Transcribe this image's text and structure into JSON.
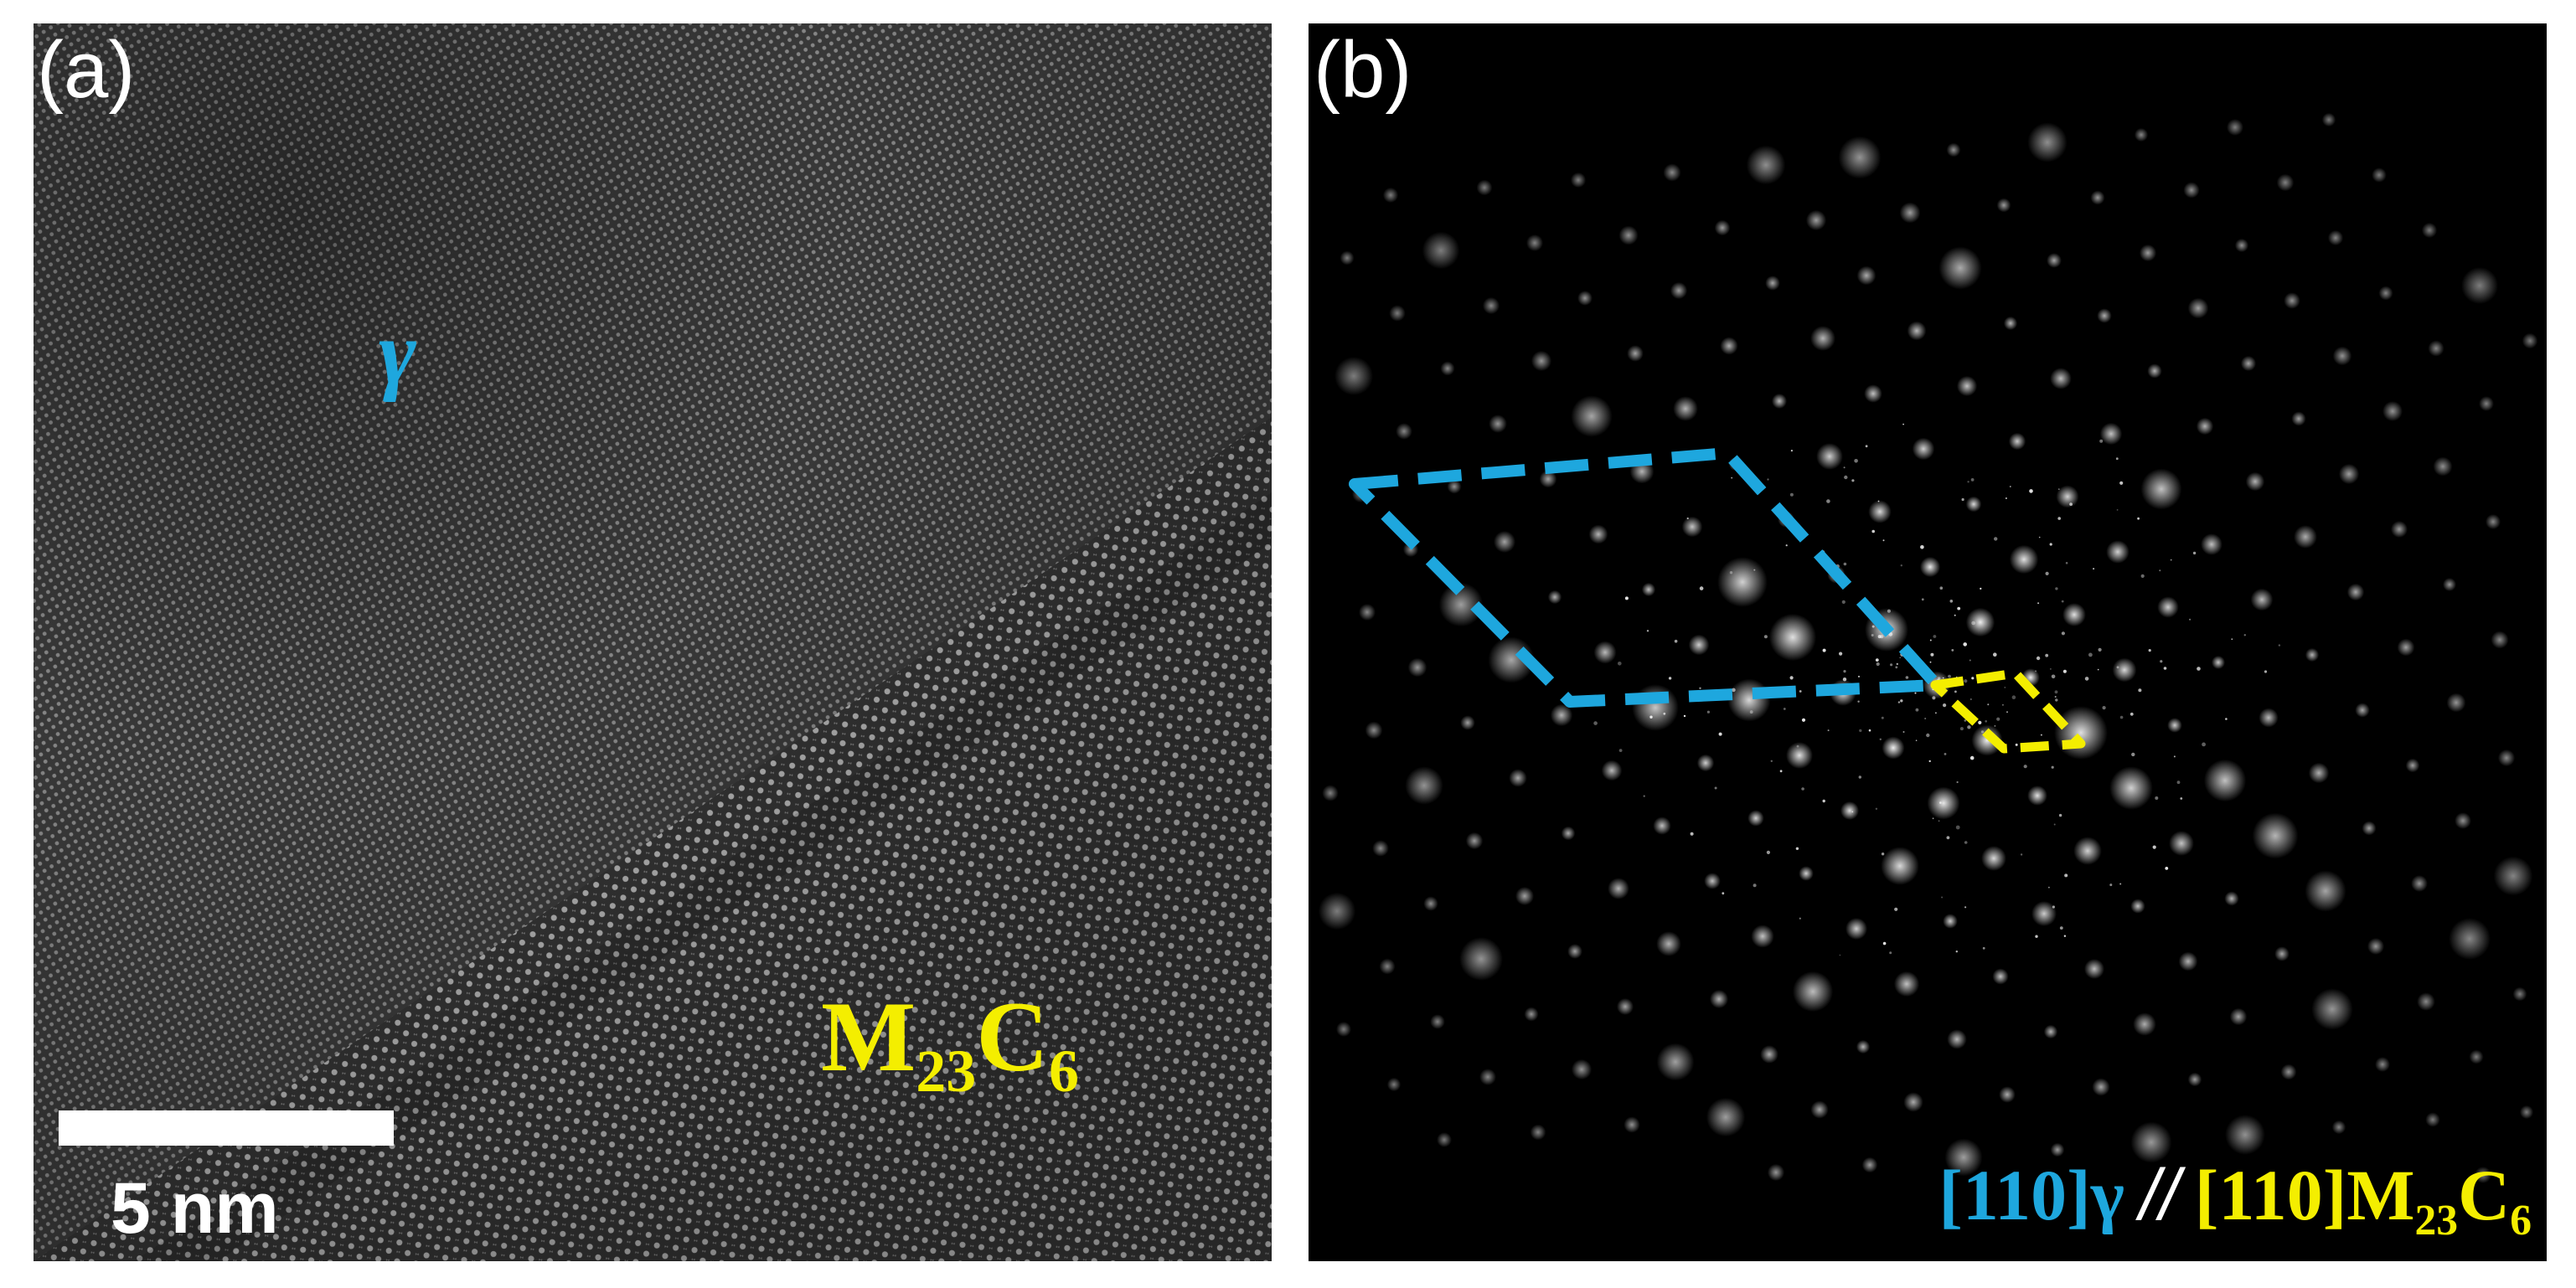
{
  "panel_a": {
    "letter": "(a)",
    "matrix_label": "γ",
    "carbide_label": {
      "base": "M",
      "sub1": "23",
      "mid": "C",
      "sub2": "6"
    },
    "scale_bar_label": "5 nm"
  },
  "panel_b": {
    "letter": "(b)",
    "zone_axis_gamma": "[110]γ",
    "separator": "//",
    "zone_axis_carbide": {
      "prefix": "[110]M",
      "sub1": "23",
      "mid": "C",
      "sub2": "6"
    }
  },
  "colors": {
    "gamma": "#1ea7de",
    "carbide": "#f4ee00",
    "text": "#ffffff"
  }
}
